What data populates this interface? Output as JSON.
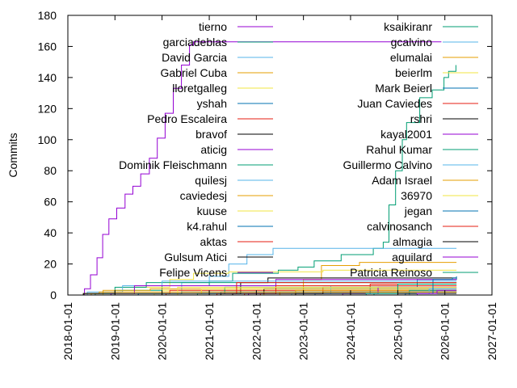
{
  "chart_data": {
    "type": "line",
    "title": "",
    "xlabel": "",
    "ylabel": "Commits",
    "xlim": [
      "2018-01-01",
      "2027-01-01"
    ],
    "ylim": [
      0,
      180
    ],
    "x_ticks": [
      "2018-01-01",
      "2019-01-01",
      "2020-01-01",
      "2021-01-01",
      "2022-01-01",
      "2023-01-01",
      "2024-01-01",
      "2025-01-01",
      "2026-01-01",
      "2027-01-01"
    ],
    "y_ticks": [
      0,
      20,
      40,
      60,
      80,
      100,
      120,
      140,
      160,
      180
    ],
    "grid": false,
    "legend_placement": "inside, two columns, top",
    "palette": [
      "#9400d3",
      "#009e73",
      "#56b4e9",
      "#e69f00",
      "#f0e442",
      "#0072b2",
      "#e51e10",
      "#000000"
    ],
    "series": [
      {
        "name": "tierno",
        "points": [
          [
            "2018-04-01",
            0
          ],
          [
            "2018-05-10",
            4
          ],
          [
            "2018-06-25",
            13
          ],
          [
            "2018-08-15",
            24
          ],
          [
            "2018-09-28",
            39
          ],
          [
            "2018-11-15",
            49
          ],
          [
            "2019-01-15",
            56
          ],
          [
            "2019-03-20",
            65
          ],
          [
            "2019-05-20",
            70
          ],
          [
            "2019-07-20",
            78
          ],
          [
            "2019-09-25",
            88
          ],
          [
            "2019-11-25",
            101
          ],
          [
            "2020-01-25",
            117
          ],
          [
            "2020-03-28",
            133
          ],
          [
            "2020-05-30",
            148
          ],
          [
            "2020-08-01",
            161
          ],
          [
            "2020-09-01",
            163
          ],
          [
            "2025-12-05",
            163
          ]
        ]
      },
      {
        "name": "garciadeblas",
        "points": [
          [
            "2018-04-01",
            0
          ],
          [
            "2018-05-01",
            1
          ],
          [
            "2019-01-01",
            3
          ],
          [
            "2020-01-01",
            6
          ],
          [
            "2021-01-01",
            9
          ],
          [
            "2021-07-01",
            14
          ],
          [
            "2022-06-20",
            16
          ],
          [
            "2022-11-20",
            18
          ],
          [
            "2023-03-25",
            22
          ],
          [
            "2023-10-20",
            26
          ],
          [
            "2024-06-25",
            30
          ],
          [
            "2024-09-10",
            34
          ],
          [
            "2024-10-25",
            58
          ],
          [
            "2024-12-15",
            80
          ],
          [
            "2025-02-05",
            100
          ],
          [
            "2025-03-10",
            111
          ],
          [
            "2025-06-20",
            127
          ],
          [
            "2025-09-25",
            132
          ],
          [
            "2025-12-25",
            140
          ],
          [
            "2026-01-30",
            144
          ],
          [
            "2026-03-28",
            148
          ]
        ]
      },
      {
        "name": "David Garcia",
        "points": [
          [
            "2019-06-01",
            0
          ],
          [
            "2019-07-01",
            1
          ],
          [
            "2020-06-01",
            8
          ],
          [
            "2021-01-01",
            12
          ],
          [
            "2021-06-01",
            20
          ],
          [
            "2021-10-20",
            26
          ],
          [
            "2022-05-10",
            30
          ],
          [
            "2026-04-01",
            30
          ]
        ]
      },
      {
        "name": "Gabriel Cuba",
        "points": [
          [
            "2022-06-01",
            0
          ],
          [
            "2022-07-01",
            2
          ],
          [
            "2023-01-01",
            10
          ],
          [
            "2023-05-20",
            19
          ],
          [
            "2024-03-10",
            21
          ],
          [
            "2026-04-01",
            21
          ]
        ]
      },
      {
        "name": "lloretgalleg",
        "points": [
          [
            "2018-09-01",
            0
          ],
          [
            "2018-10-01",
            1
          ],
          [
            "2019-06-01",
            5
          ],
          [
            "2020-03-01",
            10
          ],
          [
            "2020-09-01",
            14
          ],
          [
            "2021-06-01",
            15
          ],
          [
            "2023-06-01",
            16
          ],
          [
            "2026-04-01",
            16
          ]
        ]
      },
      {
        "name": "yshah",
        "points": [
          [
            "2023-03-01",
            0
          ],
          [
            "2023-04-01",
            1
          ],
          [
            "2024-06-01",
            5
          ],
          [
            "2025-06-01",
            10
          ],
          [
            "2026-04-01",
            12
          ]
        ]
      },
      {
        "name": "Pedro Escaleira",
        "points": [
          [
            "2022-01-01",
            0
          ],
          [
            "2022-02-01",
            1
          ],
          [
            "2023-06-01",
            5
          ],
          [
            "2024-06-01",
            7
          ],
          [
            "2026-04-01",
            7
          ]
        ]
      },
      {
        "name": "bravof",
        "points": [
          [
            "2021-03-01",
            0
          ],
          [
            "2021-04-01",
            1
          ],
          [
            "2021-09-01",
            8
          ],
          [
            "2022-04-01",
            11
          ],
          [
            "2026-04-01",
            11
          ]
        ]
      },
      {
        "name": "aticig",
        "points": [
          [
            "2021-10-01",
            0
          ],
          [
            "2021-11-01",
            1
          ],
          [
            "2022-06-01",
            10
          ],
          [
            "2026-04-01",
            10
          ]
        ]
      },
      {
        "name": "Dominik Fleischmann",
        "points": [
          [
            "2018-07-01",
            0
          ],
          [
            "2018-08-01",
            1
          ],
          [
            "2019-01-01",
            5
          ],
          [
            "2019-09-01",
            8
          ],
          [
            "2026-04-01",
            8
          ]
        ]
      },
      {
        "name": "quilesj",
        "points": [
          [
            "2018-05-01",
            0
          ],
          [
            "2018-06-01",
            2
          ],
          [
            "2019-03-01",
            6
          ],
          [
            "2020-01-01",
            9
          ],
          [
            "2026-04-01",
            9
          ]
        ]
      },
      {
        "name": "caviedesj",
        "points": [
          [
            "2018-06-01",
            0
          ],
          [
            "2018-07-01",
            1
          ],
          [
            "2018-10-01",
            3
          ],
          [
            "2019-10-01",
            4
          ],
          [
            "2026-04-01",
            4
          ]
        ]
      },
      {
        "name": "kuuse",
        "points": [
          [
            "2019-10-01",
            0
          ],
          [
            "2019-11-01",
            1
          ],
          [
            "2020-01-01",
            3
          ],
          [
            "2026-04-01",
            3
          ]
        ]
      },
      {
        "name": "k4.rahul",
        "points": [
          [
            "2019-06-01",
            0
          ],
          [
            "2019-07-01",
            1
          ],
          [
            "2020-06-01",
            2
          ],
          [
            "2026-04-01",
            2
          ]
        ]
      },
      {
        "name": "aktas",
        "points": [
          [
            "2020-01-01",
            0
          ],
          [
            "2020-02-01",
            1
          ],
          [
            "2020-03-01",
            3
          ],
          [
            "2026-04-01",
            3
          ]
        ]
      },
      {
        "name": "Gulsum Atici",
        "points": [
          [
            "2021-06-01",
            0
          ],
          [
            "2021-07-01",
            1
          ],
          [
            "2022-03-01",
            4
          ],
          [
            "2026-04-01",
            4
          ]
        ]
      },
      {
        "name": "Felipe Vicens",
        "points": [
          [
            "2018-11-01",
            0
          ],
          [
            "2018-12-01",
            1
          ],
          [
            "2019-06-01",
            6
          ],
          [
            "2026-04-01",
            6
          ]
        ]
      },
      {
        "name": "ksaikiranr",
        "points": [
          [
            "2020-09-01",
            0
          ],
          [
            "2020-10-01",
            1
          ],
          [
            "2021-05-01",
            5
          ],
          [
            "2026-04-01",
            5
          ]
        ]
      },
      {
        "name": "gcalvino",
        "points": [
          [
            "2022-09-01",
            0
          ],
          [
            "2022-10-01",
            1
          ],
          [
            "2023-08-01",
            6
          ],
          [
            "2026-04-01",
            6
          ]
        ]
      },
      {
        "name": "elumalai",
        "points": [
          [
            "2022-02-01",
            0
          ],
          [
            "2022-03-01",
            1
          ],
          [
            "2022-11-01",
            3
          ],
          [
            "2026-04-01",
            3
          ]
        ]
      },
      {
        "name": "beierlm",
        "points": [
          [
            "2020-04-01",
            0
          ],
          [
            "2020-05-01",
            1
          ],
          [
            "2020-11-01",
            4
          ],
          [
            "2026-04-01",
            4
          ]
        ]
      },
      {
        "name": "Mark Beierl",
        "points": [
          [
            "2020-12-01",
            0
          ],
          [
            "2021-01-01",
            1
          ],
          [
            "2021-04-01",
            2
          ],
          [
            "2026-04-01",
            2
          ]
        ]
      },
      {
        "name": "Juan Caviedes",
        "points": [
          [
            "2021-09-01",
            0
          ],
          [
            "2021-10-01",
            1
          ],
          [
            "2022-06-01",
            6
          ],
          [
            "2026-04-01",
            6
          ]
        ]
      },
      {
        "name": "rshri",
        "points": [
          [
            "2022-10-01",
            0
          ],
          [
            "2022-11-01",
            1
          ],
          [
            "2023-06-01",
            2
          ],
          [
            "2026-04-01",
            2
          ]
        ]
      },
      {
        "name": "kayal2001",
        "points": [
          [
            "2023-10-01",
            0
          ],
          [
            "2023-11-01",
            1
          ],
          [
            "2024-08-01",
            5
          ],
          [
            "2026-04-01",
            5
          ]
        ]
      },
      {
        "name": "Rahul Kumar",
        "points": [
          [
            "2024-06-01",
            0
          ],
          [
            "2024-07-01",
            1
          ],
          [
            "2025-04-01",
            3
          ],
          [
            "2026-04-01",
            3
          ]
        ]
      },
      {
        "name": "Guillermo Calvino",
        "points": [
          [
            "2025-03-01",
            0
          ],
          [
            "2025-04-01",
            1
          ],
          [
            "2025-09-01",
            4
          ],
          [
            "2026-04-01",
            4
          ]
        ]
      },
      {
        "name": "Adam Israel",
        "points": [
          [
            "2018-04-01",
            0
          ],
          [
            "2018-05-01",
            1
          ],
          [
            "2018-09-01",
            2
          ],
          [
            "2026-04-01",
            2
          ]
        ]
      },
      {
        "name": "36970",
        "points": [
          [
            "2018-12-01",
            0
          ],
          [
            "2019-01-01",
            1
          ],
          [
            "2020-05-01",
            5
          ],
          [
            "2026-04-01",
            5
          ]
        ]
      },
      {
        "name": "jegan",
        "points": [
          [
            "2025-02-01",
            0
          ],
          [
            "2025-03-01",
            1
          ],
          [
            "2025-10-01",
            10
          ],
          [
            "2026-03-01",
            11
          ],
          [
            "2026-04-01",
            11
          ]
        ]
      },
      {
        "name": "calvinosanch",
        "points": [
          [
            "2021-02-01",
            0
          ],
          [
            "2021-03-01",
            1
          ],
          [
            "2021-08-01",
            8
          ],
          [
            "2026-04-01",
            8
          ]
        ]
      },
      {
        "name": "almagia",
        "points": [
          [
            "2018-03-01",
            0
          ],
          [
            "2018-05-01",
            1
          ],
          [
            "2026-04-01",
            1
          ]
        ]
      },
      {
        "name": "aguilard",
        "points": [
          [
            "2025-05-01",
            0
          ],
          [
            "2025-06-01",
            1
          ],
          [
            "2025-11-01",
            3
          ],
          [
            "2026-04-01",
            3
          ]
        ]
      },
      {
        "name": "Patricia Reinoso",
        "points": [
          [
            "2024-04-01",
            0
          ],
          [
            "2024-05-01",
            1
          ],
          [
            "2025-01-01",
            7
          ],
          [
            "2026-04-01",
            7
          ]
        ]
      }
    ]
  }
}
